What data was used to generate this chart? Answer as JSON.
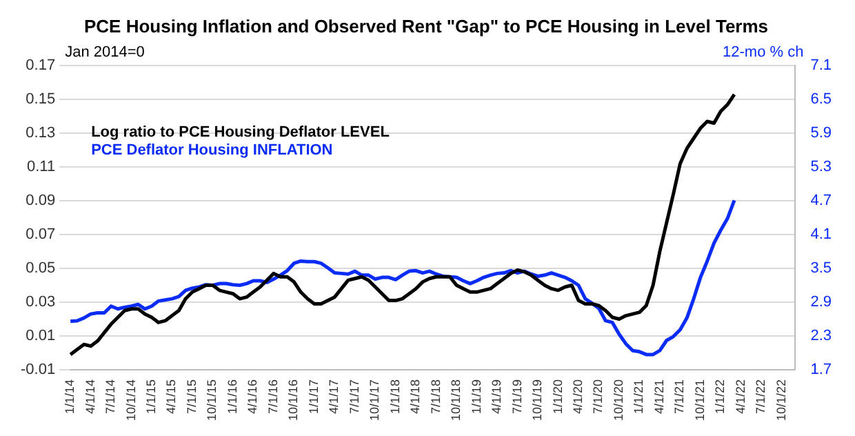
{
  "chart_data": {
    "type": "line",
    "title": "PCE Housing Inflation and Observed Rent \"Gap\" to PCE Housing in Level Terms",
    "ylabel": "Jan 2014=0",
    "y2label": "12-mo % ch",
    "categories": [
      "1/1/14",
      null,
      null,
      "4/1/14",
      null,
      null,
      "7/1/14",
      null,
      null,
      "10/1/14",
      null,
      null,
      "1/1/15",
      null,
      null,
      "4/1/15",
      null,
      null,
      "7/1/15",
      null,
      null,
      "10/1/15",
      null,
      null,
      "1/1/16",
      null,
      null,
      "4/1/16",
      null,
      null,
      "7/1/16",
      null,
      null,
      "10/1/16",
      null,
      null,
      "1/1/17",
      null,
      null,
      "4/1/17",
      null,
      null,
      "7/1/17",
      null,
      null,
      "10/1/17",
      null,
      null,
      "1/1/18",
      null,
      null,
      "4/1/18",
      null,
      null,
      "7/1/18",
      null,
      null,
      "10/1/18",
      null,
      null,
      "1/1/19",
      null,
      null,
      "4/1/19",
      null,
      null,
      "7/1/19",
      null,
      null,
      "10/1/19",
      null,
      null,
      "1/1/20",
      null,
      null,
      "4/1/20",
      null,
      null,
      "7/1/20",
      null,
      null,
      "10/1/20",
      null,
      null,
      "1/1/21",
      null,
      null,
      "4/1/21",
      null,
      null,
      "7/1/21",
      null,
      null,
      "10/1/21",
      null,
      null,
      "1/1/22",
      null,
      null,
      "4/1/22",
      null,
      null,
      "7/1/22",
      null,
      null,
      "10/1/22",
      null,
      null
    ],
    "series": [
      {
        "name": "Log ratio to PCE Housing Deflator LEVEL",
        "color": "#000000",
        "values": [
          -0.001,
          0.002,
          0.005,
          0.004,
          0.007,
          0.012,
          0.017,
          0.021,
          0.025,
          0.026,
          0.026,
          0.023,
          0.021,
          0.018,
          0.019,
          0.022,
          0.025,
          0.032,
          0.036,
          0.038,
          0.04,
          0.04,
          0.037,
          0.036,
          0.035,
          0.032,
          0.033,
          0.036,
          0.039,
          0.043,
          0.047,
          0.045,
          0.045,
          0.042,
          0.036,
          0.032,
          0.029,
          0.029,
          0.031,
          0.033,
          0.038,
          0.043,
          0.044,
          0.045,
          0.043,
          0.039,
          0.035,
          0.031,
          0.031,
          0.032,
          0.035,
          0.038,
          0.042,
          0.044,
          0.045,
          0.045,
          0.045,
          0.04,
          0.038,
          0.036,
          0.036,
          0.037,
          0.038,
          0.041,
          0.044,
          0.047,
          0.049,
          0.048,
          0.046,
          0.043,
          0.04,
          0.038,
          0.037,
          0.039,
          0.04,
          0.031,
          0.029,
          0.029,
          0.028,
          0.025,
          0.021,
          0.02,
          0.022,
          0.023,
          0.024,
          0.028,
          0.04,
          0.06,
          0.077,
          0.094,
          0.112,
          0.121,
          0.127,
          0.133,
          0.137,
          0.136,
          0.143,
          0.147,
          0.153,
          null,
          null,
          null,
          null,
          null,
          null,
          null,
          null,
          null
        ]
      },
      {
        "name": "PCE Deflator Housing INFLATION",
        "color": "#0a2cf5",
        "axis": "y2",
        "values": [
          2.56,
          2.57,
          2.62,
          2.69,
          2.71,
          2.71,
          2.83,
          2.78,
          2.81,
          2.83,
          2.86,
          2.78,
          2.83,
          2.92,
          2.94,
          2.96,
          3.0,
          3.11,
          3.15,
          3.17,
          3.21,
          3.2,
          3.23,
          3.23,
          3.21,
          3.2,
          3.23,
          3.28,
          3.28,
          3.25,
          3.31,
          3.38,
          3.46,
          3.59,
          3.63,
          3.62,
          3.62,
          3.59,
          3.51,
          3.42,
          3.41,
          3.4,
          3.45,
          3.38,
          3.38,
          3.31,
          3.34,
          3.34,
          3.3,
          3.38,
          3.45,
          3.46,
          3.42,
          3.45,
          3.4,
          3.36,
          3.35,
          3.34,
          3.28,
          3.23,
          3.28,
          3.34,
          3.38,
          3.41,
          3.42,
          3.46,
          3.42,
          3.45,
          3.4,
          3.36,
          3.38,
          3.42,
          3.38,
          3.34,
          3.28,
          3.2,
          2.96,
          2.88,
          2.79,
          2.57,
          2.54,
          2.33,
          2.16,
          2.04,
          2.02,
          1.97,
          1.97,
          2.04,
          2.22,
          2.29,
          2.41,
          2.62,
          2.96,
          3.34,
          3.63,
          3.95,
          4.18,
          4.39,
          4.71,
          null,
          null,
          null,
          null,
          null,
          null,
          null,
          null,
          null
        ]
      }
    ],
    "ylim": [
      -0.01,
      0.17
    ],
    "yticks": [
      -0.01,
      0.01,
      0.03,
      0.05,
      0.07,
      0.09,
      0.11,
      0.13,
      0.15,
      0.17
    ],
    "y2lim": [
      1.7,
      7.1
    ],
    "y2ticks": [
      1.7,
      2.3,
      2.9,
      3.5,
      4.1,
      4.7,
      5.3,
      5.9,
      6.5,
      7.1
    ],
    "grid": "y",
    "legend": "top left",
    "marker": "none",
    "line_style": "solid"
  }
}
